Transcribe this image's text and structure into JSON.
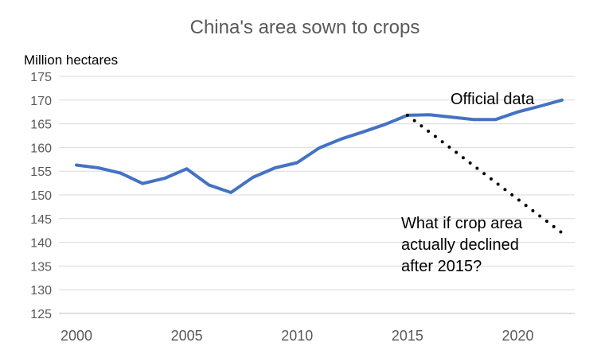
{
  "chart_data": {
    "type": "line",
    "title": "China's area sown to crops",
    "ylabel": "Million hectares",
    "xlabel": "",
    "ylim": [
      125,
      175
    ],
    "xlim": [
      2000,
      2022
    ],
    "y_ticks": [
      "125",
      "130",
      "135",
      "140",
      "145",
      "150",
      "155",
      "160",
      "165",
      "170",
      "175"
    ],
    "x_ticks": [
      "2000",
      "2005",
      "2010",
      "2015",
      "2020"
    ],
    "grid": "horizontal",
    "legend": "none",
    "colors": {
      "official": "#4472c4",
      "hypothetical": "#000000"
    },
    "series": [
      {
        "style": "solid",
        "x": [
          2000,
          2001,
          2002,
          2003,
          2004,
          2005,
          2006,
          2007,
          2008,
          2009,
          2010,
          2011,
          2012,
          2013,
          2014,
          2015,
          2016,
          2017,
          2018,
          2019,
          2020,
          2021,
          2022
        ],
        "values": [
          156.3,
          155.7,
          154.6,
          152.4,
          153.5,
          155.5,
          152.1,
          150.5,
          153.7,
          155.7,
          156.8,
          159.9,
          161.8,
          163.3,
          164.9,
          166.8,
          166.9,
          166.4,
          165.9,
          165.9,
          167.5,
          168.7,
          170.0
        ]
      },
      {
        "style": "dotted",
        "x": [
          2015,
          2022
        ],
        "values": [
          166.8,
          142.0
        ]
      }
    ],
    "annotations": [
      {
        "id": "official",
        "lines": [
          "Official data"
        ]
      },
      {
        "id": "question",
        "lines": [
          "What if crop area",
          "actually declined",
          "after 2015?"
        ]
      }
    ]
  }
}
